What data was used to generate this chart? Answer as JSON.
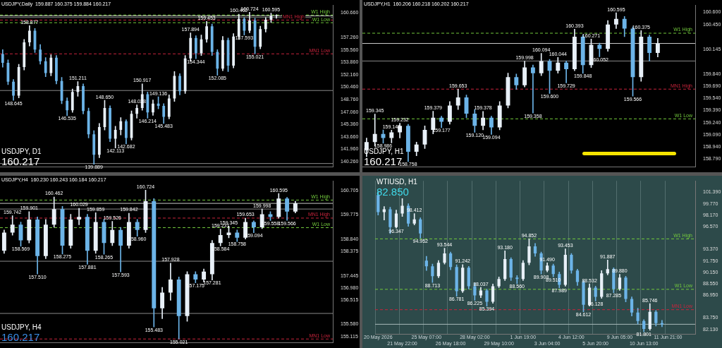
{
  "chart_data": [
    {
      "type": "candlestick",
      "title": "USDJPY, D1",
      "subtitle": "160.217",
      "categories": [
        null,
        null,
        null,
        null,
        null,
        null,
        null,
        null,
        null,
        null,
        null,
        null,
        null,
        null,
        null,
        null,
        null,
        null,
        null,
        null,
        null,
        null,
        null,
        null,
        null,
        null,
        null,
        null,
        null,
        null,
        null,
        null,
        null,
        null,
        null,
        null,
        null,
        null,
        null,
        null,
        null,
        null,
        null,
        null,
        null,
        null,
        null,
        null,
        null,
        null,
        null,
        null,
        null,
        null,
        null,
        null,
        null,
        null,
        null,
        null,
        null,
        null
      ],
      "ohlc": [
        [
          155.0,
          155.6,
          153.2,
          153.8
        ],
        [
          153.8,
          154.2,
          150.8,
          151.2
        ],
        [
          151.2,
          151.5,
          148.645,
          149.3
        ],
        [
          149.3,
          153.6,
          149.0,
          153.2
        ],
        [
          153.2,
          157.0,
          152.8,
          156.6
        ],
        [
          156.6,
          158.877,
          156.1,
          158.2
        ],
        [
          158.2,
          158.5,
          155.2,
          155.6
        ],
        [
          155.6,
          156.3,
          153.6,
          154.0
        ],
        [
          154.0,
          154.5,
          151.9,
          152.4
        ],
        [
          152.4,
          154.9,
          152.0,
          154.5
        ],
        [
          154.5,
          154.8,
          150.9,
          151.3
        ],
        [
          151.3,
          151.8,
          148.2,
          148.6
        ],
        [
          148.6,
          149.0,
          146.535,
          147.3
        ],
        [
          147.3,
          150.2,
          147.0,
          149.8
        ],
        [
          149.8,
          151.211,
          149.2,
          150.6
        ],
        [
          150.6,
          150.9,
          146.8,
          147.2
        ],
        [
          147.2,
          147.6,
          143.5,
          144.0
        ],
        [
          144.0,
          144.5,
          139.889,
          141.2
        ],
        [
          141.2,
          145.5,
          140.8,
          145.0
        ],
        [
          145.0,
          148.65,
          144.6,
          147.6
        ],
        [
          147.6,
          147.9,
          143.0,
          143.4
        ],
        [
          143.4,
          145.1,
          142.113,
          144.6
        ],
        [
          144.6,
          146.3,
          143.9,
          145.8
        ],
        [
          145.8,
          146.0,
          142.682,
          143.5
        ],
        [
          143.5,
          147.2,
          143.2,
          146.8
        ],
        [
          146.8,
          148.028,
          146.2,
          147.6
        ],
        [
          147.6,
          150.917,
          147.3,
          149.5
        ],
        [
          149.5,
          149.8,
          146.214,
          147.0
        ],
        [
          147.0,
          148.7,
          146.6,
          148.2
        ],
        [
          148.2,
          149.136,
          147.5,
          147.9
        ],
        [
          147.9,
          148.2,
          145.483,
          146.4
        ],
        [
          146.4,
          149.4,
          146.1,
          148.9
        ],
        [
          148.9,
          152.6,
          148.5,
          152.0
        ],
        [
          152.0,
          152.3,
          149.4,
          149.9
        ],
        [
          149.9,
          154.8,
          149.6,
          154.4
        ],
        [
          154.4,
          157.894,
          154.0,
          157.2
        ],
        [
          157.2,
          157.5,
          154.344,
          155.1
        ],
        [
          155.1,
          157.6,
          154.8,
          157.0
        ],
        [
          157.0,
          159.453,
          156.6,
          158.8
        ],
        [
          158.8,
          159.1,
          154.8,
          155.3
        ],
        [
          155.3,
          155.6,
          152.085,
          153.0
        ],
        [
          153.0,
          157.4,
          152.7,
          156.9
        ],
        [
          156.9,
          157.2,
          152.6,
          153.4
        ],
        [
          153.4,
          157.8,
          153.1,
          157.4
        ],
        [
          157.4,
          160.462,
          157.0,
          159.8
        ],
        [
          159.8,
          160.0,
          157.593,
          158.2
        ],
        [
          158.2,
          160.724,
          157.9,
          159.6
        ],
        [
          159.6,
          159.9,
          155.021,
          156.0
        ],
        [
          156.0,
          158.8,
          155.7,
          158.4
        ],
        [
          158.4,
          160.0,
          158.0,
          159.7
        ],
        [
          159.7,
          160.595,
          159.3,
          160.2
        ],
        [
          160.2,
          160.375,
          159.884,
          160.217
        ],
        null,
        null,
        null,
        null,
        null,
        null,
        null,
        null,
        null,
        null
      ],
      "colors": [
        "#6cb4e8",
        "#6cb4e8",
        "#6cb4e8",
        "#e8f0f8",
        "#e8f0f8",
        "#e8f0f8",
        "#6cb4e8",
        "#6cb4e8",
        "#6cb4e8",
        "#e8f0f8",
        "#6cb4e8",
        "#6cb4e8",
        "#6cb4e8",
        "#e8f0f8",
        "#e8f0f8",
        "#6cb4e8",
        "#6cb4e8",
        "#6cb4e8",
        "#e8f0f8",
        "#e8f0f8",
        "#6cb4e8",
        "#e8f0f8",
        "#e8f0f8",
        "#6cb4e8",
        "#e8f0f8",
        "#e8f0f8",
        "#e8f0f8",
        "#6cb4e8",
        "#e8f0f8",
        "#6cb4e8",
        "#6cb4e8",
        "#e8f0f8",
        "#e8f0f8",
        "#6cb4e8",
        "#e8f0f8",
        "#e8f0f8",
        "#6cb4e8",
        "#e8f0f8",
        "#e8f0f8",
        "#6cb4e8",
        "#6cb4e8",
        "#e8f0f8",
        "#6cb4e8",
        "#e8f0f8",
        "#e8f0f8",
        "#6cb4e8",
        "#e8f0f8",
        "#6cb4e8",
        "#e8f0f8",
        "#e8f0f8",
        "#e8f0f8",
        "#e8f0f8",
        null,
        null,
        null,
        null,
        null,
        null,
        null,
        null,
        null,
        null
      ],
      "ylim": [
        139.5,
        161.7
      ],
      "yticks": [
        {
          "value": 140.26,
          "label": "140.260"
        },
        {
          "value": 141.96,
          "label": "141.960"
        },
        {
          "value": 143.66,
          "label": "143.660"
        },
        {
          "value": 145.36,
          "label": "145.360"
        },
        {
          "value": 147.06,
          "label": "147.060"
        },
        {
          "value": 148.76,
          "label": "148.760"
        },
        {
          "value": 150.46,
          "label": "150.460"
        },
        {
          "value": 152.16,
          "label": "152.160"
        },
        {
          "value": 153.86,
          "label": "153.860"
        },
        {
          "value": 155.56,
          "label": "155.560"
        },
        {
          "value": 157.26,
          "label": "157.260"
        },
        {
          "value": 160.66,
          "label": "160.660"
        }
      ],
      "ref_lines": [
        {
          "axis": "y",
          "value": 160.343,
          "label": "W1 High",
          "color": "#72c83c",
          "line_style": "dashed"
        },
        {
          "axis": "y",
          "value": 160.217,
          "label": null,
          "color": "#c8c8c8",
          "line_style": "solid"
        },
        {
          "axis": "y",
          "value": 160,
          "label": null,
          "color": "#8a8a8a",
          "line_style": "solid"
        },
        {
          "axis": "y",
          "value": 159.653,
          "label": "MN1 High",
          "color": "#c8243c",
          "line_style": "dashed"
        },
        {
          "axis": "y",
          "value": 159.286,
          "label": "W1 Low",
          "color": "#72c83c",
          "line_style": "dashed"
        },
        {
          "axis": "y",
          "value": 155.021,
          "label": "MN1 Low",
          "color": "#c8243c",
          "line_style": "dashed"
        },
        {
          "axis": "y",
          "value": 150,
          "label": null,
          "color": "#8a8a8a",
          "line_style": "solid"
        },
        {
          "axis": "y",
          "value": 140,
          "label": null,
          "color": "#8a8a8a",
          "line_style": "solid"
        }
      ],
      "annotations": [
        "USDJPY,Daily  159.887 160.375 159.884 160.217",
        {
          "text": "148.645",
          "y": 148.645
        },
        {
          "text": "158.877",
          "y": 158.877
        },
        {
          "text": "146.535",
          "y": 146.535
        },
        {
          "text": "151.211",
          "y": 151.211
        },
        {
          "text": "139.889",
          "y": 139.889
        },
        {
          "text": "148.650",
          "y": 148.65
        },
        {
          "text": "142.113",
          "y": 142.113
        },
        {
          "text": "142.682",
          "y": 142.682
        },
        {
          "text": "148.028",
          "y": 148.028
        },
        {
          "text": "150.917",
          "y": 150.917
        },
        {
          "text": "146.214",
          "y": 146.214
        },
        {
          "text": "149.136",
          "y": 149.136
        },
        {
          "text": "145.483",
          "y": 145.483
        },
        {
          "text": "157.894",
          "y": 157.894
        },
        {
          "text": "154.344",
          "y": 154.344
        },
        {
          "text": "159.453",
          "y": 159.453
        },
        {
          "text": "152.085",
          "y": 152.085
        },
        {
          "text": "160.462",
          "y": 160.462
        },
        {
          "text": "157.593",
          "y": 157.593
        },
        {
          "text": "160.724",
          "y": 160.724
        },
        {
          "text": "155.021",
          "y": 155.021
        },
        {
          "text": "160.595",
          "y": 160.595
        }
      ],
      "grid": false,
      "legend": false
    },
    {
      "type": "candlestick",
      "title": "USDJPY, H1",
      "subtitle": "160.217",
      "categories": [
        null,
        null,
        null,
        null,
        null,
        null,
        null,
        null,
        null,
        null,
        null,
        null,
        null,
        null,
        null,
        null,
        null,
        null,
        null,
        null,
        null,
        null,
        null,
        null,
        null,
        null,
        null,
        null,
        null,
        null,
        null,
        null,
        null,
        null,
        null,
        null,
        null,
        null,
        null,
        null
      ],
      "ohlc": [
        [
          158.9,
          159.05,
          158.82,
          159.0
        ],
        [
          159.0,
          159.345,
          158.95,
          159.1
        ],
        [
          159.1,
          159.15,
          158.986,
          159.05
        ],
        [
          159.05,
          159.148,
          158.99,
          159.12
        ],
        [
          159.12,
          159.232,
          159.05,
          159.2
        ],
        [
          159.2,
          159.22,
          158.758,
          158.88
        ],
        [
          158.88,
          159.0,
          158.83,
          158.97
        ],
        [
          158.97,
          159.2,
          158.92,
          159.15
        ],
        [
          159.15,
          159.379,
          159.1,
          159.3
        ],
        [
          159.3,
          159.32,
          159.177,
          159.25
        ],
        [
          159.25,
          159.5,
          159.22,
          159.45
        ],
        [
          159.45,
          159.653,
          159.4,
          159.55
        ],
        [
          159.55,
          159.58,
          159.3,
          159.35
        ],
        [
          159.35,
          159.4,
          159.12,
          159.2
        ],
        [
          159.2,
          159.378,
          159.15,
          159.3
        ],
        [
          159.3,
          159.32,
          159.094,
          159.18
        ],
        [
          159.18,
          159.5,
          159.15,
          159.45
        ],
        [
          159.45,
          159.85,
          159.42,
          159.8
        ],
        [
          159.8,
          159.84,
          159.65,
          159.7
        ],
        [
          159.7,
          159.998,
          159.68,
          159.92
        ],
        [
          159.92,
          159.95,
          159.358,
          159.85
        ],
        [
          159.85,
          160.094,
          159.82,
          160.0
        ],
        [
          160.0,
          160.02,
          159.6,
          159.88
        ],
        [
          159.88,
          160.044,
          159.85,
          159.98
        ],
        [
          159.98,
          160.0,
          159.729,
          159.9
        ],
        [
          159.9,
          160.393,
          159.88,
          160.3
        ],
        [
          160.3,
          160.32,
          159.848,
          159.95
        ],
        [
          159.95,
          160.271,
          159.92,
          160.2
        ],
        [
          160.2,
          160.22,
          160.052,
          160.15
        ],
        [
          160.15,
          160.5,
          160.12,
          160.45
        ],
        [
          160.45,
          160.595,
          160.4,
          160.52
        ],
        [
          160.52,
          160.55,
          160.3,
          160.4
        ],
        [
          160.4,
          160.42,
          159.566,
          159.8
        ],
        [
          159.8,
          160.375,
          159.75,
          160.3
        ],
        [
          160.3,
          160.32,
          160.0,
          160.1
        ],
        [
          160.1,
          160.28,
          160.05,
          160.217
        ],
        null,
        null,
        null,
        null
      ],
      "colors": [
        "#e8f0f8",
        "#e8f0f8",
        "#6cb4e8",
        "#e8f0f8",
        "#e8f0f8",
        "#6cb4e8",
        "#e8f0f8",
        "#e8f0f8",
        "#e8f0f8",
        "#6cb4e8",
        "#e8f0f8",
        "#e8f0f8",
        "#6cb4e8",
        "#6cb4e8",
        "#e8f0f8",
        "#6cb4e8",
        "#e8f0f8",
        "#e8f0f8",
        "#6cb4e8",
        "#e8f0f8",
        "#6cb4e8",
        "#e8f0f8",
        "#6cb4e8",
        "#e8f0f8",
        "#6cb4e8",
        "#e8f0f8",
        "#6cb4e8",
        "#e8f0f8",
        "#6cb4e8",
        "#e8f0f8",
        "#e8f0f8",
        "#6cb4e8",
        "#6cb4e8",
        "#e8f0f8",
        "#6cb4e8",
        "#e8f0f8",
        null,
        null,
        null,
        null
      ],
      "ylim": [
        158.69,
        160.69
      ],
      "yticks": [
        {
          "value": 158.79,
          "label": "158.790"
        },
        {
          "value": 158.94,
          "label": "158.940"
        },
        {
          "value": 159.09,
          "label": "159.090"
        },
        {
          "value": 159.24,
          "label": "159.240"
        },
        {
          "value": 159.39,
          "label": "159.390"
        },
        {
          "value": 159.54,
          "label": "159.540"
        },
        {
          "value": 159.69,
          "label": "159.690"
        },
        {
          "value": 159.84,
          "label": "159.840"
        },
        {
          "value": 160.145,
          "label": "160.145"
        },
        {
          "value": 160.45,
          "label": "160.450"
        },
        {
          "value": 160.6,
          "label": "160.600"
        }
      ],
      "ref_lines": [
        {
          "axis": "y",
          "value": 160.343,
          "label": "W1 High",
          "color": "#72c83c",
          "line_style": "dashed"
        },
        {
          "axis": "y",
          "value": 160.217,
          "label": null,
          "color": "#c8c8c8",
          "line_style": "solid"
        },
        {
          "axis": "y",
          "value": 160,
          "label": null,
          "color": "#8a8a8a",
          "line_style": "solid"
        },
        {
          "axis": "y",
          "value": 159.653,
          "label": "MN1 High",
          "color": "#c8243c",
          "line_style": "dashed"
        },
        {
          "axis": "y",
          "value": 159.286,
          "label": "W1 Low",
          "color": "#72c83c",
          "line_style": "dashed"
        }
      ],
      "annotations": [
        "USDJPY,H1  160.206 160.218 160.202 160.217",
        {
          "text": "159.345",
          "y": 159.345
        },
        {
          "text": "158.986",
          "y": 158.986
        },
        {
          "text": "159.148",
          "y": 159.148
        },
        {
          "text": "159.232",
          "y": 159.232
        },
        {
          "text": "158.758",
          "y": 158.758
        },
        {
          "text": "159.379",
          "y": 159.379
        },
        {
          "text": "159.177",
          "y": 159.177
        },
        {
          "text": "159.653",
          "y": 159.653
        },
        {
          "text": "159.120",
          "y": 159.12
        },
        {
          "text": "159.378",
          "y": 159.378
        },
        {
          "text": "159.094",
          "y": 159.094
        },
        {
          "text": "159.998",
          "y": 159.998
        },
        {
          "text": "159.358",
          "y": 159.358
        },
        {
          "text": "160.094",
          "y": 160.094
        },
        {
          "text": "159.600",
          "y": 159.6
        },
        {
          "text": "160.044",
          "y": 160.044
        },
        {
          "text": "159.729",
          "y": 159.729
        },
        {
          "text": "160.393",
          "y": 160.393
        },
        {
          "text": "159.848",
          "y": 159.848
        },
        {
          "text": "160.271",
          "y": 160.271
        },
        {
          "text": "160.052",
          "y": 160.052
        },
        {
          "text": "160.595",
          "y": 160.595
        },
        {
          "text": "159.566",
          "y": 159.566
        },
        {
          "text": "160.375",
          "y": 160.375
        }
      ],
      "grid": false,
      "legend": false
    },
    {
      "type": "candlestick",
      "title": "USDJPY, H4",
      "subtitle": "160.217",
      "categories": [
        null,
        null,
        null,
        null,
        null,
        null,
        null,
        null,
        null,
        null,
        null,
        null,
        null,
        null,
        null,
        null,
        null,
        null,
        null,
        null,
        null,
        null,
        null,
        null,
        null,
        null,
        null,
        null,
        null,
        null,
        null,
        null,
        null,
        null,
        null,
        null,
        null,
        null,
        null,
        null
      ],
      "ohlc": [
        [
          158.4,
          159.2,
          158.3,
          159.1
        ],
        [
          159.1,
          159.742,
          159.0,
          159.4
        ],
        [
          159.4,
          159.5,
          158.569,
          158.8
        ],
        [
          158.8,
          159.901,
          158.7,
          159.6
        ],
        [
          159.6,
          159.7,
          157.51,
          158.2
        ],
        [
          158.2,
          159.6,
          158.1,
          159.4
        ],
        [
          159.4,
          160.462,
          159.3,
          160.0
        ],
        [
          160.0,
          160.1,
          158.275,
          158.6
        ],
        [
          158.6,
          159.8,
          158.5,
          159.6
        ],
        [
          159.6,
          160.029,
          159.4,
          159.7
        ],
        [
          159.7,
          159.8,
          157.881,
          158.4
        ],
        [
          158.4,
          159.859,
          158.3,
          159.5
        ],
        [
          159.5,
          159.6,
          158.265,
          158.7
        ],
        [
          158.7,
          159.526,
          158.6,
          159.2
        ],
        [
          159.2,
          159.3,
          157.593,
          158.6
        ],
        [
          158.6,
          159.842,
          158.5,
          159.5
        ],
        [
          159.5,
          159.6,
          158.96,
          159.2
        ],
        [
          159.2,
          160.724,
          159.1,
          160.3
        ],
        [
          160.3,
          160.4,
          155.483,
          156.2
        ],
        [
          156.2,
          157.0,
          155.8,
          156.8
        ],
        [
          156.8,
          157.928,
          156.5,
          157.3
        ],
        [
          157.3,
          157.4,
          155.021,
          155.9
        ],
        [
          155.9,
          157.6,
          155.7,
          157.5
        ],
        [
          157.5,
          157.6,
          157.175,
          157.3
        ],
        [
          157.3,
          157.7,
          157.2,
          157.6
        ],
        [
          157.5,
          158.8,
          157.281,
          158.7
        ],
        [
          158.7,
          159.231,
          158.584,
          159.0
        ],
        [
          159.0,
          159.345,
          158.9,
          159.1
        ],
        [
          159.1,
          159.2,
          158.758,
          158.9
        ],
        [
          158.9,
          159.653,
          158.85,
          159.5
        ],
        [
          159.5,
          159.55,
          159.094,
          159.3
        ],
        [
          159.3,
          159.998,
          159.25,
          159.8
        ],
        [
          159.8,
          159.9,
          159.558,
          159.7
        ],
        [
          159.7,
          160.595,
          159.65,
          160.4
        ],
        [
          160.4,
          160.45,
          159.566,
          159.9
        ],
        [
          159.9,
          160.3,
          159.85,
          160.217
        ],
        null,
        null,
        null,
        null
      ],
      "colors": [
        "#e8f0f8",
        "#e8f0f8",
        "#6cb4e8",
        "#e8f0f8",
        "#6cb4e8",
        "#e8f0f8",
        "#e8f0f8",
        "#6cb4e8",
        "#e8f0f8",
        "#e8f0f8",
        "#6cb4e8",
        "#e8f0f8",
        "#6cb4e8",
        "#e8f0f8",
        "#6cb4e8",
        "#e8f0f8",
        "#6cb4e8",
        "#e8f0f8",
        "#6cb4e8",
        "#e8f0f8",
        "#e8f0f8",
        "#6cb4e8",
        "#e8f0f8",
        "#6cb4e8",
        "#e8f0f8",
        "#e8f0f8",
        "#e8f0f8",
        "#e8f0f8",
        "#6cb4e8",
        "#e8f0f8",
        "#6cb4e8",
        "#e8f0f8",
        "#6cb4e8",
        "#e8f0f8",
        "#6cb4e8",
        "#e8f0f8",
        null,
        null,
        null,
        null
      ],
      "ylim": [
        154.87,
        161.08
      ],
      "yticks": [
        {
          "value": 155.115,
          "label": "155.115"
        },
        {
          "value": 155.58,
          "label": "155.580"
        },
        {
          "value": 156.515,
          "label": "156.515"
        },
        {
          "value": 156.98,
          "label": "156.980"
        },
        {
          "value": 157.445,
          "label": "157.445"
        },
        {
          "value": 158.375,
          "label": "158.375"
        },
        {
          "value": 158.84,
          "label": "158.840"
        },
        {
          "value": 159.775,
          "label": "159.775"
        },
        {
          "value": 160.705,
          "label": "160.705"
        }
      ],
      "ref_lines": [
        {
          "axis": "y",
          "value": 160.343,
          "label": "W1 High",
          "color": "#72c83c",
          "line_style": "dashed"
        },
        {
          "axis": "y",
          "value": 160.217,
          "label": null,
          "color": "#c8c8c8",
          "line_style": "solid"
        },
        {
          "axis": "y",
          "value": 160,
          "label": null,
          "color": "#8a8a8a",
          "line_style": "solid"
        },
        {
          "axis": "y",
          "value": 159.653,
          "label": "MN1 High",
          "color": "#c8243c",
          "line_style": "dashed"
        },
        {
          "axis": "y",
          "value": 159.286,
          "label": "W1 Low",
          "color": "#72c83c",
          "line_style": "dashed"
        },
        {
          "axis": "y",
          "value": 158,
          "label": null,
          "color": "#8a8a8a",
          "line_style": "solid"
        },
        {
          "axis": "y",
          "value": 156,
          "label": null,
          "color": "#8a8a8a",
          "line_style": "solid"
        },
        {
          "axis": "y",
          "value": 155.021,
          "label": "MN1 Low",
          "color": "#c8243c",
          "line_style": "dashed"
        }
      ],
      "annotations": [
        "USDJPY,H4  160.230 160.243 160.184 160.217",
        {
          "text": "159.742",
          "y": 159.742
        },
        {
          "text": "158.569",
          "y": 158.569
        },
        {
          "text": "159.901",
          "y": 159.901
        },
        {
          "text": "157.510",
          "y": 157.51
        },
        {
          "text": "160.462",
          "y": 160.462
        },
        {
          "text": "158.275",
          "y": 158.275
        },
        {
          "text": "160.029",
          "y": 160.029
        },
        {
          "text": "157.881",
          "y": 157.881
        },
        {
          "text": "159.859",
          "y": 159.859
        },
        {
          "text": "158.265",
          "y": 158.265
        },
        {
          "text": "159.526",
          "y": 159.526
        },
        {
          "text": "157.593",
          "y": 157.593
        },
        {
          "text": "159.842",
          "y": 159.842
        },
        {
          "text": "158.960",
          "y": 158.96
        },
        {
          "text": "160.724",
          "y": 160.724
        },
        {
          "text": "155.483",
          "y": 155.483
        },
        {
          "text": "157.928",
          "y": 157.928
        },
        {
          "text": "155.021",
          "y": 155.021
        },
        {
          "text": "157.175",
          "y": 157.175
        },
        {
          "text": "157.281",
          "y": 157.281
        },
        {
          "text": "159.231",
          "y": 159.231
        },
        {
          "text": "158.584",
          "y": 158.584
        },
        {
          "text": "159.345",
          "y": 159.345
        },
        {
          "text": "158.758",
          "y": 158.758
        },
        {
          "text": "159.653",
          "y": 159.653
        },
        {
          "text": "159.094",
          "y": 159.094
        },
        {
          "text": "159.998",
          "y": 159.998
        },
        {
          "text": "159.558",
          "y": 159.558
        },
        {
          "text": "160.595",
          "y": 160.595
        },
        {
          "text": "159.566",
          "y": 159.566
        }
      ],
      "grid": false,
      "legend": false
    },
    {
      "type": "candlestick",
      "title": "WTIUSD, H1",
      "subtitle": "82.850",
      "categories": [
        "20 May 2026",
        null,
        null,
        null,
        "21 May 22:00",
        null,
        null,
        null,
        "25 May 07:00",
        null,
        null,
        null,
        "26 May 18:00",
        null,
        null,
        null,
        "28 May 02:00",
        null,
        null,
        null,
        "29 May 10:00",
        null,
        null,
        null,
        "1 Jun 19:00",
        null,
        null,
        null,
        "3 Jun 04:00",
        null,
        null,
        null,
        "4 Jun 12:00",
        null,
        null,
        null,
        "5 Jun 20:00",
        null,
        null,
        null,
        "9 Jun 05:00",
        null,
        null,
        null,
        "10 Jun 13:00",
        null,
        null,
        null,
        "11 Jun 21:00",
        null,
        null,
        null,
        null
      ],
      "ohlc": [
        [
          101.0,
          101.5,
          98.2,
          98.6
        ],
        [
          98.6,
          99.4,
          97.5,
          99.0
        ],
        [
          99.0,
          99.3,
          95.6,
          96.5
        ],
        [
          96.5,
          98.9,
          96.347,
          98.4
        ],
        [
          98.4,
          100.5,
          98.0,
          99.5
        ],
        [
          99.5,
          99.8,
          96.6,
          97.0
        ],
        [
          97.0,
          98.412,
          96.8,
          97.6
        ],
        [
          97.6,
          97.8,
          94.952,
          95.6
        ],
        [
          91.8,
          92.4,
          90.4,
          91.0
        ],
        [
          91.0,
          91.3,
          88.713,
          89.6
        ],
        [
          89.6,
          91.8,
          89.4,
          91.5
        ],
        [
          91.5,
          93.544,
          91.3,
          92.8
        ],
        [
          92.8,
          93.0,
          90.5,
          90.9
        ],
        [
          90.9,
          91.2,
          86.781,
          87.5
        ],
        [
          87.5,
          91.242,
          87.3,
          90.8
        ],
        [
          90.8,
          91.0,
          87.8,
          88.2
        ],
        [
          88.2,
          88.6,
          86.225,
          86.9
        ],
        [
          86.9,
          88.037,
          86.6,
          87.6
        ],
        [
          87.6,
          87.8,
          85.394,
          86.0
        ],
        [
          86.0,
          88.5,
          85.8,
          88.2
        ],
        [
          88.2,
          89.5,
          88.0,
          89.2
        ],
        [
          89.2,
          93.18,
          89.0,
          92.0
        ],
        [
          92.0,
          92.2,
          89.0,
          89.4
        ],
        [
          89.4,
          89.7,
          88.56,
          89.2
        ],
        [
          89.2,
          91.8,
          89.0,
          91.5
        ],
        [
          91.5,
          94.852,
          91.2,
          93.8
        ],
        [
          93.8,
          94.2,
          92.4,
          92.8
        ],
        [
          92.8,
          93.0,
          89.908,
          90.4
        ],
        [
          90.4,
          91.49,
          90.2,
          91.1
        ],
        [
          91.1,
          91.3,
          89.51,
          89.9
        ],
        [
          89.9,
          90.2,
          87.989,
          88.4
        ],
        [
          88.4,
          93.453,
          88.2,
          92.6
        ],
        [
          92.6,
          92.8,
          90.0,
          90.4
        ],
        [
          90.4,
          90.6,
          88.3,
          88.8
        ],
        [
          88.8,
          89.0,
          84.612,
          85.6
        ],
        [
          85.6,
          88.532,
          85.4,
          88.0
        ],
        [
          88.0,
          88.2,
          86.128,
          86.7
        ],
        [
          86.7,
          90.4,
          86.5,
          90.0
        ],
        [
          90.0,
          91.887,
          89.8,
          90.6
        ],
        [
          90.6,
          90.8,
          87.285,
          87.8
        ],
        [
          87.8,
          89.88,
          87.6,
          89.4
        ],
        [
          89.4,
          89.6,
          86.0,
          86.4
        ],
        [
          86.4,
          86.7,
          84.0,
          84.5
        ],
        [
          84.5,
          85.1,
          82.9,
          83.3
        ],
        [
          83.3,
          83.5,
          81.801,
          82.2
        ],
        [
          82.2,
          85.746,
          82.0,
          84.6
        ],
        [
          84.6,
          84.8,
          82.6,
          83.0
        ],
        [
          83.0,
          83.4,
          82.5,
          82.85
        ],
        null,
        null,
        null,
        null,
        null
      ],
      "colors": [
        "#6cb4e8",
        "#e8f0f8",
        "#6cb4e8",
        "#e8f0f8",
        "#e8f0f8",
        "#6cb4e8",
        "#e8f0f8",
        "#6cb4e8",
        "#6cb4e8",
        "#6cb4e8",
        "#e8f0f8",
        "#e8f0f8",
        "#6cb4e8",
        "#6cb4e8",
        "#e8f0f8",
        "#6cb4e8",
        "#6cb4e8",
        "#e8f0f8",
        "#6cb4e8",
        "#e8f0f8",
        "#e8f0f8",
        "#e8f0f8",
        "#6cb4e8",
        "#6cb4e8",
        "#e8f0f8",
        "#e8f0f8",
        "#6cb4e8",
        "#6cb4e8",
        "#e8f0f8",
        "#6cb4e8",
        "#6cb4e8",
        "#e8f0f8",
        "#6cb4e8",
        "#6cb4e8",
        "#6cb4e8",
        "#e8f0f8",
        "#6cb4e8",
        "#e8f0f8",
        "#e8f0f8",
        "#6cb4e8",
        "#e8f0f8",
        "#6cb4e8",
        "#6cb4e8",
        "#6cb4e8",
        "#6cb4e8",
        "#e8f0f8",
        "#6cb4e8",
        "#6cb4e8",
        null,
        null,
        null,
        null,
        null
      ],
      "ylim": [
        81.5,
        103
      ],
      "yticks": [
        {
          "value": 82.13,
          "label": "82.130"
        },
        {
          "value": 83.75,
          "label": "83.750"
        },
        {
          "value": 86.95,
          "label": "86.950"
        },
        {
          "value": 88.55,
          "label": "88.550"
        },
        {
          "value": 90.15,
          "label": "90.150"
        },
        {
          "value": 91.75,
          "label": "91.750"
        },
        {
          "value": 93.37,
          "label": "93.370"
        },
        {
          "value": 96.57,
          "label": "96.570"
        },
        {
          "value": 98.17,
          "label": "98.170"
        },
        {
          "value": 99.77,
          "label": "99.770"
        },
        {
          "value": 101.39,
          "label": "101.390"
        }
      ],
      "ref_lines": [
        {
          "axis": "y",
          "value": 94.85,
          "label": "W1 High",
          "color": "#72c83c",
          "line_style": "dashed"
        },
        {
          "axis": "y",
          "value": 87.76,
          "label": "W1 Low",
          "color": "#72c83c",
          "line_style": "dashed"
        },
        {
          "axis": "y",
          "value": 84.9,
          "label": "MN1 Low",
          "color": "#c8243c",
          "line_style": "dashed"
        },
        {
          "axis": "y",
          "value": 82.85,
          "label": null,
          "color": "#a8b8b8",
          "line_style": "solid"
        }
      ],
      "annotations": [
        {
          "text": "96.347",
          "y": 96.347
        },
        {
          "text": "98.412",
          "y": 98.412
        },
        {
          "text": "94.952",
          "y": 94.952
        },
        {
          "text": "88.713",
          "y": 88.713
        },
        {
          "text": "93.544",
          "y": 93.544
        },
        {
          "text": "86.781",
          "y": 86.781
        },
        {
          "text": "91.242",
          "y": 91.242
        },
        {
          "text": "86.225",
          "y": 86.225
        },
        {
          "text": "88.037",
          "y": 88.037
        },
        {
          "text": "85.394",
          "y": 85.394
        },
        {
          "text": "93.180",
          "y": 93.18
        },
        {
          "text": "88.560",
          "y": 88.56
        },
        {
          "text": "94.852",
          "y": 94.852
        },
        {
          "text": "89.908",
          "y": 89.908
        },
        {
          "text": "91.490",
          "y": 91.49
        },
        {
          "text": "89.510",
          "y": 89.51
        },
        {
          "text": "87.989",
          "y": 87.989
        },
        {
          "text": "93.453",
          "y": 93.453
        },
        {
          "text": "84.612",
          "y": 84.612
        },
        {
          "text": "88.532",
          "y": 88.532
        },
        {
          "text": "86.128",
          "y": 86.128
        },
        {
          "text": "91.887",
          "y": 91.887
        },
        {
          "text": "87.285",
          "y": 87.285
        },
        {
          "text": "89.880",
          "y": 89.88
        },
        {
          "text": "81.801",
          "y": 81.801
        },
        {
          "text": "85.746",
          "y": 85.746
        }
      ],
      "grid": "x",
      "legend": false
    }
  ]
}
